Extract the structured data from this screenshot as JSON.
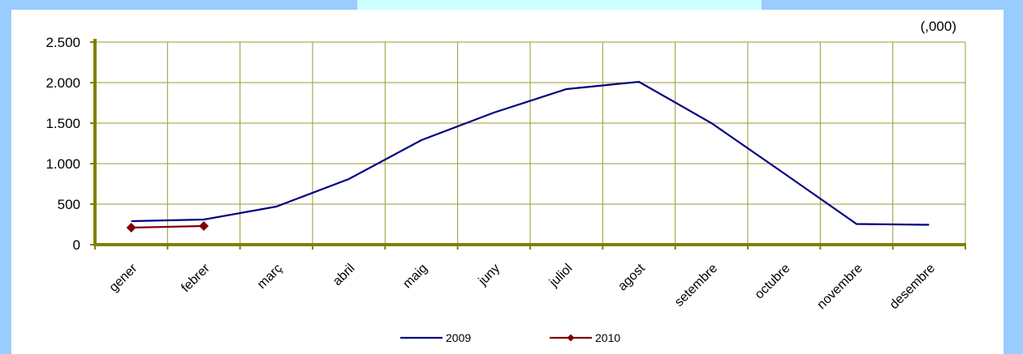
{
  "colors": {
    "frame_blue": "#99ccff",
    "frame_cyan": "#ccffff",
    "axis_olive": "#808000",
    "grid_olive": "#999933",
    "series_2009": "#000080",
    "series_2010": "#800000"
  },
  "chart_data": {
    "type": "line",
    "title": "",
    "xlabel": "",
    "ylabel": "",
    "unit_note": "(,000)",
    "categories": [
      "gener",
      "febrer",
      "març",
      "abril",
      "maig",
      "juny",
      "juliol",
      "agost",
      "setembre",
      "octubre",
      "novembre",
      "desembre"
    ],
    "ylim": [
      0,
      2500
    ],
    "y_ticks": [
      0,
      500,
      1000,
      1500,
      2000,
      2500
    ],
    "y_tick_labels": [
      "0",
      "500",
      "1.000",
      "1.500",
      "2.000",
      "2.500"
    ],
    "grid": true,
    "legend_position": "bottom-center",
    "series": [
      {
        "name": "2009",
        "color": "#000080",
        "marker": "none",
        "values": [
          290,
          310,
          470,
          810,
          1290,
          1630,
          1920,
          2010,
          1500,
          880,
          255,
          245
        ]
      },
      {
        "name": "2010",
        "color": "#800000",
        "marker": "diamond",
        "values": [
          210,
          230,
          null,
          null,
          null,
          null,
          null,
          null,
          null,
          null,
          null,
          null
        ]
      }
    ]
  }
}
